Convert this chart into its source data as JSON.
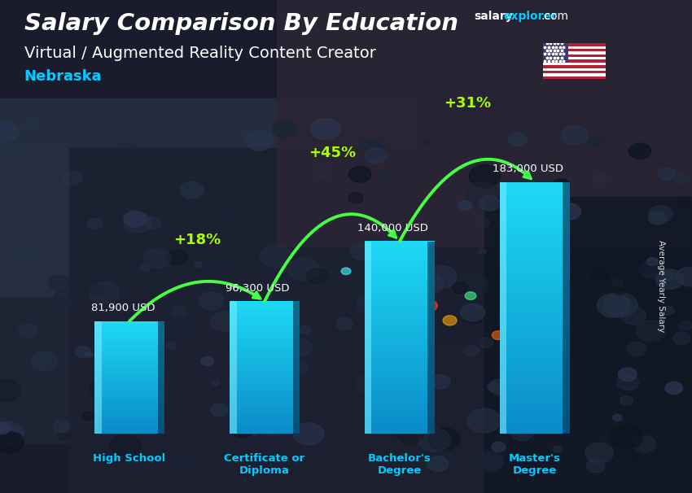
{
  "title_line1": "Salary Comparison By Education",
  "subtitle_line1": "Virtual / Augmented Reality Content Creator",
  "subtitle_line2": "Nebraska",
  "categories": [
    "High School",
    "Certificate or\nDiploma",
    "Bachelor's\nDegree",
    "Master's\nDegree"
  ],
  "values": [
    81900,
    96300,
    140000,
    183000
  ],
  "value_labels": [
    "81,900 USD",
    "96,300 USD",
    "140,000 USD",
    "183,000 USD"
  ],
  "pct_labels": [
    "+18%",
    "+45%",
    "+31%"
  ],
  "bar_color_top": "#29d0f0",
  "bar_color_bottom": "#0077bb",
  "title_color": "#ffffff",
  "subtitle_color": "#ffffff",
  "nebraska_color": "#00ccff",
  "value_label_color": "#ffffff",
  "pct_color": "#aaff00",
  "arrow_color": "#44ff44",
  "xlabel_color": "#00ccff",
  "brand_salary_color": "#ffffff",
  "brand_explorer_color": "#00ccff",
  "brand_com_color": "#ffffff",
  "ylabel_text": "Average Yearly Salary",
  "bar_width": 0.52,
  "ylim_max": 215000,
  "bg_color": "#1a1c2e"
}
